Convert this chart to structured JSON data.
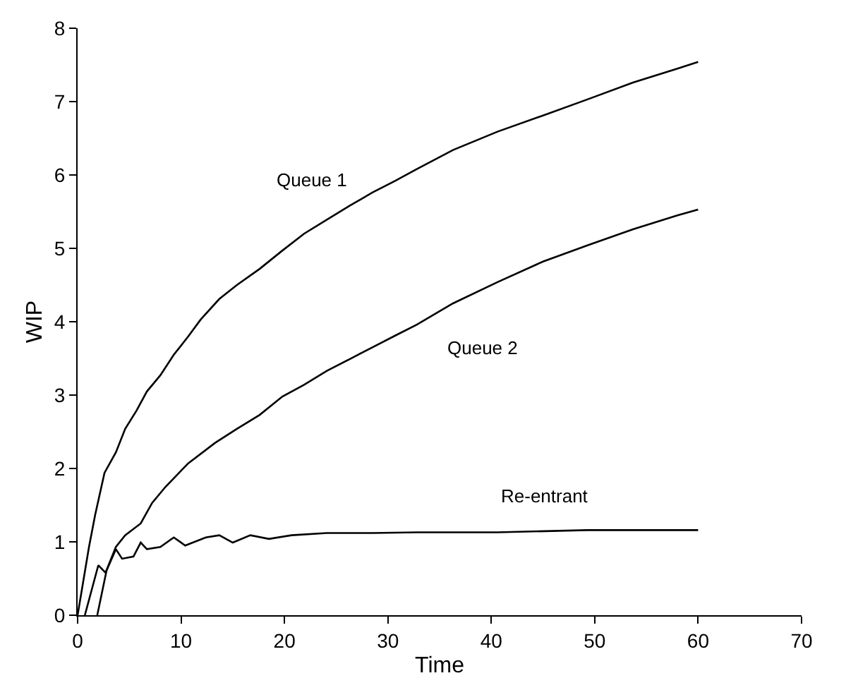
{
  "chart_data": {
    "type": "line",
    "xlabel": "Time",
    "ylabel": "WIP",
    "xlim": [
      0,
      70
    ],
    "xticks": [
      0,
      10,
      20,
      30,
      40,
      50,
      60,
      70
    ],
    "ylim": [
      0,
      8
    ],
    "yticks": [
      0,
      1,
      2,
      3,
      4,
      5,
      6,
      7,
      8
    ],
    "legend": false,
    "marker": "none",
    "line_style": "solid",
    "series": [
      {
        "name": "Queue 1",
        "color": "#000000",
        "x": [
          0,
          1.1,
          1.7,
          2.6,
          3.7,
          4.6,
          5.7,
          6.7,
          8.0,
          9.3,
          10.7,
          11.9,
          13.7,
          15.4,
          17.6,
          19.8,
          21.9,
          24.1,
          26.3,
          28.5,
          30.7,
          32.8,
          36.3,
          40.6,
          45,
          49.3,
          53.7,
          58,
          60
        ],
        "values": [
          0,
          0.93,
          1.37,
          1.94,
          2.22,
          2.54,
          2.79,
          3.05,
          3.27,
          3.55,
          3.8,
          4.03,
          4.31,
          4.5,
          4.72,
          4.97,
          5.2,
          5.39,
          5.58,
          5.76,
          5.92,
          6.08,
          6.34,
          6.59,
          6.81,
          7.03,
          7.26,
          7.45,
          7.54
        ]
      },
      {
        "name": "Queue 2",
        "color": "#000000",
        "x": [
          0.7,
          2.0,
          2.7,
          3.7,
          4.6,
          6.1,
          7.2,
          8.5,
          10.7,
          13.3,
          15.4,
          17.6,
          19.8,
          21.9,
          24.1,
          26.3,
          28.5,
          30.7,
          32.8,
          36.3,
          40.6,
          45,
          49.3,
          53.7,
          58,
          60
        ],
        "values": [
          0,
          0.68,
          0.58,
          0.93,
          1.09,
          1.25,
          1.53,
          1.75,
          2.07,
          2.35,
          2.54,
          2.73,
          2.98,
          3.14,
          3.33,
          3.49,
          3.65,
          3.81,
          3.96,
          4.25,
          4.54,
          4.82,
          5.04,
          5.26,
          5.45,
          5.53
        ]
      },
      {
        "name": "Re-entrant",
        "color": "#000000",
        "x": [
          1.9,
          2.8,
          3.7,
          4.3,
          5.4,
          6.1,
          6.7,
          8.0,
          9.3,
          10.4,
          12.4,
          13.7,
          15,
          16.7,
          18.5,
          20.7,
          24.1,
          28.5,
          32.8,
          40.6,
          49.3,
          60
        ],
        "values": [
          0,
          0.61,
          0.9,
          0.77,
          0.8,
          0.99,
          0.9,
          0.93,
          1.06,
          0.95,
          1.06,
          1.09,
          0.99,
          1.09,
          1.04,
          1.09,
          1.12,
          1.12,
          1.13,
          1.13,
          1.16,
          1.16
        ]
      }
    ]
  }
}
